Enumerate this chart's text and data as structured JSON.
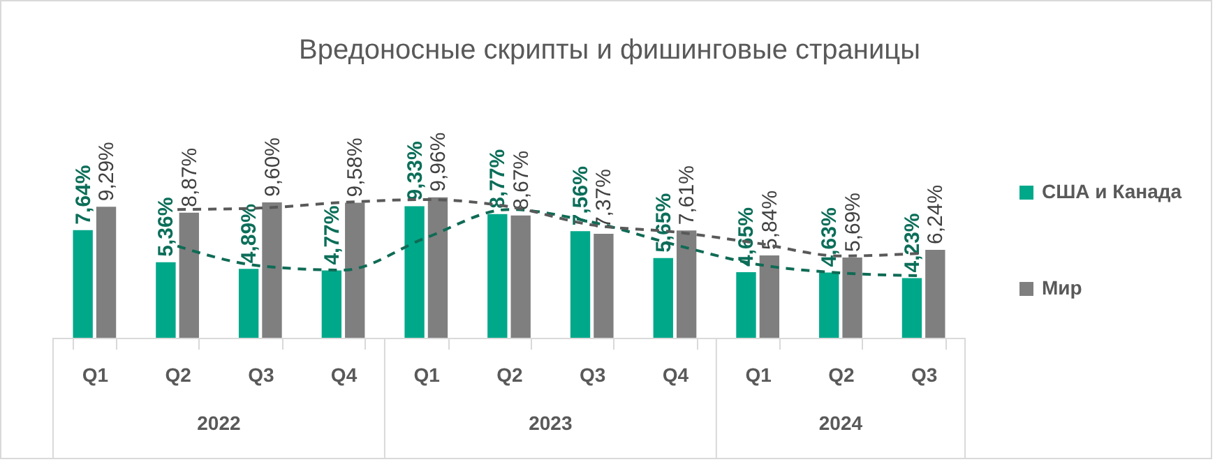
{
  "chart_data": {
    "type": "bar",
    "title": "Вредоносные скрипты и фишинговые страницы",
    "categories": [
      "Q1",
      "Q2",
      "Q3",
      "Q4",
      "Q1",
      "Q2",
      "Q3",
      "Q4",
      "Q1",
      "Q2",
      "Q3"
    ],
    "annotations": [
      "2022",
      "2023",
      "2024"
    ],
    "series": [
      {
        "name": "США и Канада",
        "color": "#00a88a",
        "values": [
          7.64,
          5.36,
          4.89,
          4.77,
          9.33,
          8.77,
          7.56,
          5.65,
          4.65,
          4.63,
          4.23
        ],
        "value_labels": [
          "7,64%",
          "5,36%",
          "4,89%",
          "4,77%",
          "9,33%",
          "8,77%",
          "7,56%",
          "5,65%",
          "4,65%",
          "4,63%",
          "4,23%"
        ]
      },
      {
        "name": "Мир",
        "color": "#7f7f7f",
        "values": [
          9.29,
          8.87,
          9.6,
          9.58,
          9.96,
          8.67,
          7.37,
          7.61,
          5.84,
          5.69,
          6.24
        ],
        "value_labels": [
          "9,29%",
          "8,87%",
          "9,60%",
          "9,58%",
          "9,96%",
          "8,67%",
          "7,37%",
          "7,61%",
          "5,84%",
          "5,69%",
          "6,24%"
        ]
      },
      {
        "type": "line",
        "line_style": "dashed",
        "color": "#0f6b55",
        "values": [
          null,
          6.5,
          5.1,
          4.8,
          7.1,
          9.1,
          8.2,
          6.6,
          5.2,
          4.6,
          4.4
        ]
      },
      {
        "type": "line",
        "line_style": "dashed",
        "color": "#595959",
        "values": [
          null,
          9.1,
          9.2,
          9.6,
          9.8,
          9.3,
          8.0,
          7.5,
          6.7,
          5.8,
          6.0
        ]
      }
    ],
    "legend": "right"
  }
}
